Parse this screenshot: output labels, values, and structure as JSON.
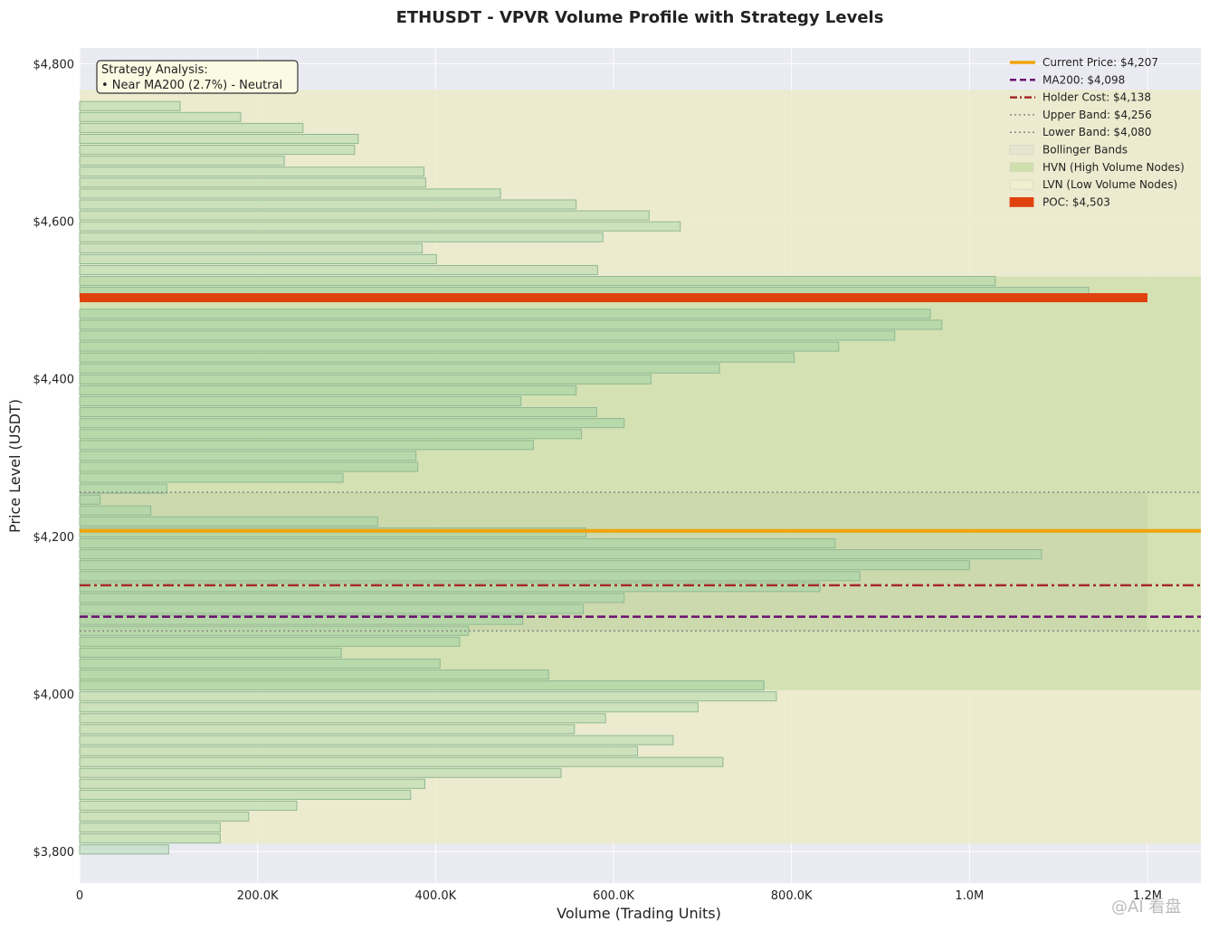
{
  "chart_data": {
    "type": "bar",
    "orientation": "horizontal",
    "title": "ETHUSDT - VPVR Volume Profile with Strategy Levels",
    "xlabel": "Volume (Trading Units)",
    "ylabel": "Price Level (USDT)",
    "xlim": [
      0,
      1260000
    ],
    "ylim": [
      3760,
      4820
    ],
    "xticks": [
      0,
      200000,
      400000,
      600000,
      800000,
      1000000,
      1200000
    ],
    "xtick_labels": [
      "0",
      "200.0K",
      "400.0K",
      "600.0K",
      "800.0K",
      "1.0M",
      "1.2M"
    ],
    "yticks": [
      3800,
      4000,
      4200,
      4400,
      4600,
      4800
    ],
    "ytick_labels": [
      "$3,800",
      "$4,000",
      "$4,200",
      "$4,400",
      "$4,600",
      "$4,800"
    ],
    "grid": true,
    "legend_position": "top-right",
    "colors": {
      "plot_bg": "#eaeaf2",
      "bollinger": "#ecebc9",
      "hvn": "#cfdfae",
      "bar_fill": "#a9d4a6",
      "bar_edge": "#8fb894",
      "current_price": "#f0a30a",
      "ma200": "#6a0f6f",
      "holder_cost": "#a52a2a",
      "band": "#888888",
      "poc": "#e0420f"
    },
    "bars": {
      "price_start": 4767,
      "price_step": -13.875,
      "values": [
        0,
        113000,
        181000,
        251000,
        313000,
        309000,
        230000,
        387000,
        389000,
        473000,
        558000,
        640000,
        675000,
        588000,
        385000,
        401000,
        582000,
        1029000,
        1134000,
        0,
        956000,
        969000,
        916000,
        853000,
        803000,
        719000,
        642000,
        558000,
        496000,
        581000,
        612000,
        564000,
        510000,
        378000,
        380000,
        296000,
        98000,
        23000,
        80000,
        335000,
        569000,
        849000,
        1081000,
        1000000,
        877000,
        832000,
        612000,
        566000,
        498000,
        437000,
        427000,
        294000,
        405000,
        527000,
        769000,
        783000,
        695000,
        591000,
        556000,
        667000,
        627000,
        723000,
        541000,
        388000,
        372000,
        244000,
        190000,
        158000,
        158000,
        100000
      ]
    },
    "bollinger_band": {
      "upper": 4767,
      "lower": 3810
    },
    "hvn_zone": {
      "upper": 4530,
      "lower": 4005
    },
    "shaded_band": {
      "upper": 4256,
      "lower": 4080,
      "x_end": 1200000
    },
    "poc": {
      "price": 4503,
      "volume": 1200000
    },
    "levels": {
      "current_price": 4207,
      "ma200": 4098,
      "holder_cost": 4138,
      "upper_band": 4256,
      "lower_band": 4080
    },
    "legend": [
      {
        "key": "current_price",
        "label": "Current Price: $4,207",
        "style": "solid-thick"
      },
      {
        "key": "ma200",
        "label": "MA200: $4,098",
        "style": "dashed"
      },
      {
        "key": "holder_cost",
        "label": "Holder Cost: $4,138",
        "style": "dashdot"
      },
      {
        "key": "upper_band",
        "label": "Upper Band: $4,256",
        "style": "dotted"
      },
      {
        "key": "lower_band",
        "label": "Lower Band: $4,080",
        "style": "dotted"
      },
      {
        "key": "bollinger",
        "label": "Bollinger Bands",
        "style": "patch-light"
      },
      {
        "key": "hvn",
        "label": "HVN (High Volume Nodes)",
        "style": "patch-green"
      },
      {
        "key": "lvn",
        "label": "LVN (Low Volume Nodes)",
        "style": "patch-yellow"
      },
      {
        "key": "poc",
        "label": "POC: $4,503",
        "style": "patch-red"
      }
    ],
    "annotation": {
      "line1": "Strategy Analysis:",
      "line2": "• Near MA200 (2.7%) - Neutral"
    }
  },
  "watermark": "@AI 看盘"
}
